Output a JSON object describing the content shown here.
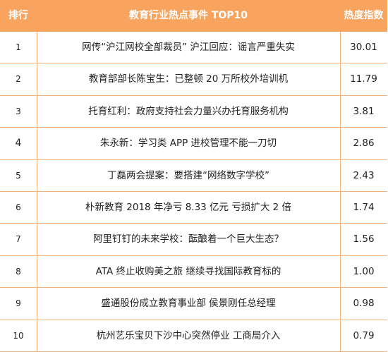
{
  "chart_data": {
    "type": "table",
    "columns": [
      "排行",
      "教育行业热点事件 TOP10",
      "热度指数"
    ],
    "rows": [
      {
        "rank": "1",
        "event": "网传“沪江网校全部裁员” 沪江回应：谣言严重失实",
        "heat": "30.01"
      },
      {
        "rank": "2",
        "event": "教育部部长陈宝生：已整顿 20 万所校外培训机",
        "heat": "11.79"
      },
      {
        "rank": "3",
        "event": "托育红利：政府支持社会力量兴办托育服务机构",
        "heat": "3.81"
      },
      {
        "rank": "4",
        "event": "朱永新：学习类 APP 进校管理不能一刀切",
        "heat": "2.86"
      },
      {
        "rank": "5",
        "event": "丁磊两会提案：要搭建“网络数字学校”",
        "heat": "2.43"
      },
      {
        "rank": "6",
        "event": "朴新教育 2018 年净亏 8.33 亿元 亏损扩大 2 倍",
        "heat": "1.74"
      },
      {
        "rank": "7",
        "event": "阿里钉钉的未来学校：酝酿着一个巨大生态？",
        "heat": "1.56"
      },
      {
        "rank": "8",
        "event": "ATA 终止收购美之旅 继续寻找国际教育标的",
        "heat": "1.00"
      },
      {
        "rank": "9",
        "event": "盛通股份成立教育事业部 侯景刚任总经理",
        "heat": "0.98"
      },
      {
        "rank": "10",
        "event": "杭州艺乐宝贝下沙中心突然停业 工商局介入",
        "heat": "0.79"
      }
    ]
  },
  "colors": {
    "header_bg": "#F8A45E",
    "header_text": "#FFFFFF",
    "grid_line": "#F3B27A",
    "body_text": "#222222"
  }
}
